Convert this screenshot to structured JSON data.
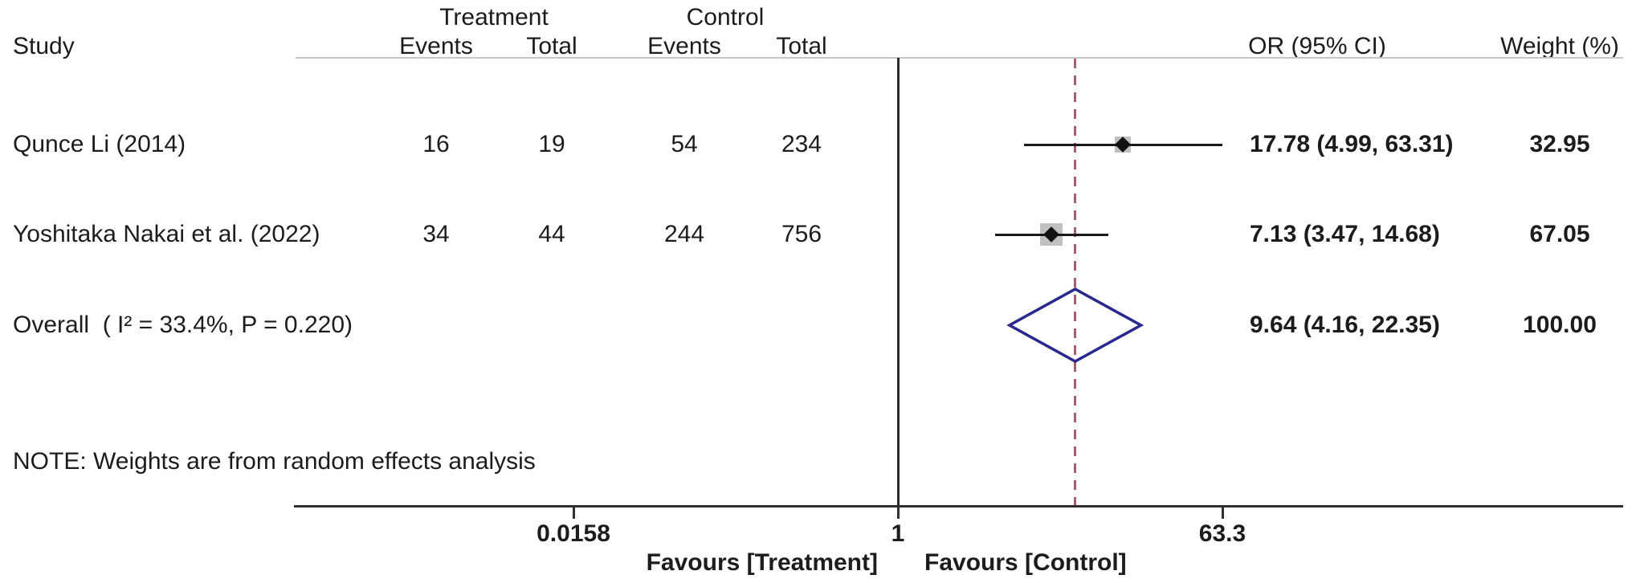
{
  "header": {
    "study": "Study",
    "treatment_group": "Treatment",
    "control_group": "Control",
    "treatment_events": "Events",
    "treatment_total": "Total",
    "control_events": "Events",
    "control_total": "Total",
    "or_ci": "OR (95% CI)",
    "weight": "Weight (%)"
  },
  "chart_data": {
    "type": "forest",
    "scale": "log",
    "effect_measure": "OR",
    "x_ticks": [
      0.0158,
      1,
      63.3
    ],
    "x_tick_labels": [
      "0.0158",
      "1",
      "63.3"
    ],
    "null_line_value": 1,
    "overall_dashed_line_value": 9.64,
    "favours_left": "Favours [Treatment]",
    "favours_right": "Favours [Control]",
    "note": "NOTE: Weights are from random effects analysis",
    "studies": [
      {
        "label": "Qunce Li (2014)",
        "treatment_events": "16",
        "treatment_total": "19",
        "control_events": "54",
        "control_total": "234",
        "or": 17.78,
        "ci_low": 4.99,
        "ci_high": 63.31,
        "or_text": "17.78 (4.99, 63.31)",
        "weight": 32.95,
        "weight_text": "32.95"
      },
      {
        "label": "Yoshitaka Nakai et al. (2022)",
        "treatment_events": "34",
        "treatment_total": "44",
        "control_events": "244",
        "control_total": "756",
        "or": 7.13,
        "ci_low": 3.47,
        "ci_high": 14.68,
        "or_text": "7.13 (3.47, 14.68)",
        "weight": 67.05,
        "weight_text": "67.05"
      }
    ],
    "overall": {
      "label": "Overall  ( I² = 33.4%, P = 0.220)",
      "or": 9.64,
      "ci_low": 4.16,
      "ci_high": 22.35,
      "or_text": "9.64 (4.16, 22.35)",
      "weight_text": "100.00",
      "heterogeneity_i2": "33.4%",
      "heterogeneity_p": "0.220"
    }
  },
  "colors": {
    "text": "#1c1c1c",
    "diamond": "#28288f",
    "dashed_line": "#a86070",
    "axis": "#303030",
    "header_rule": "#c8c8c8",
    "weight_box": "#b0b0b0"
  }
}
